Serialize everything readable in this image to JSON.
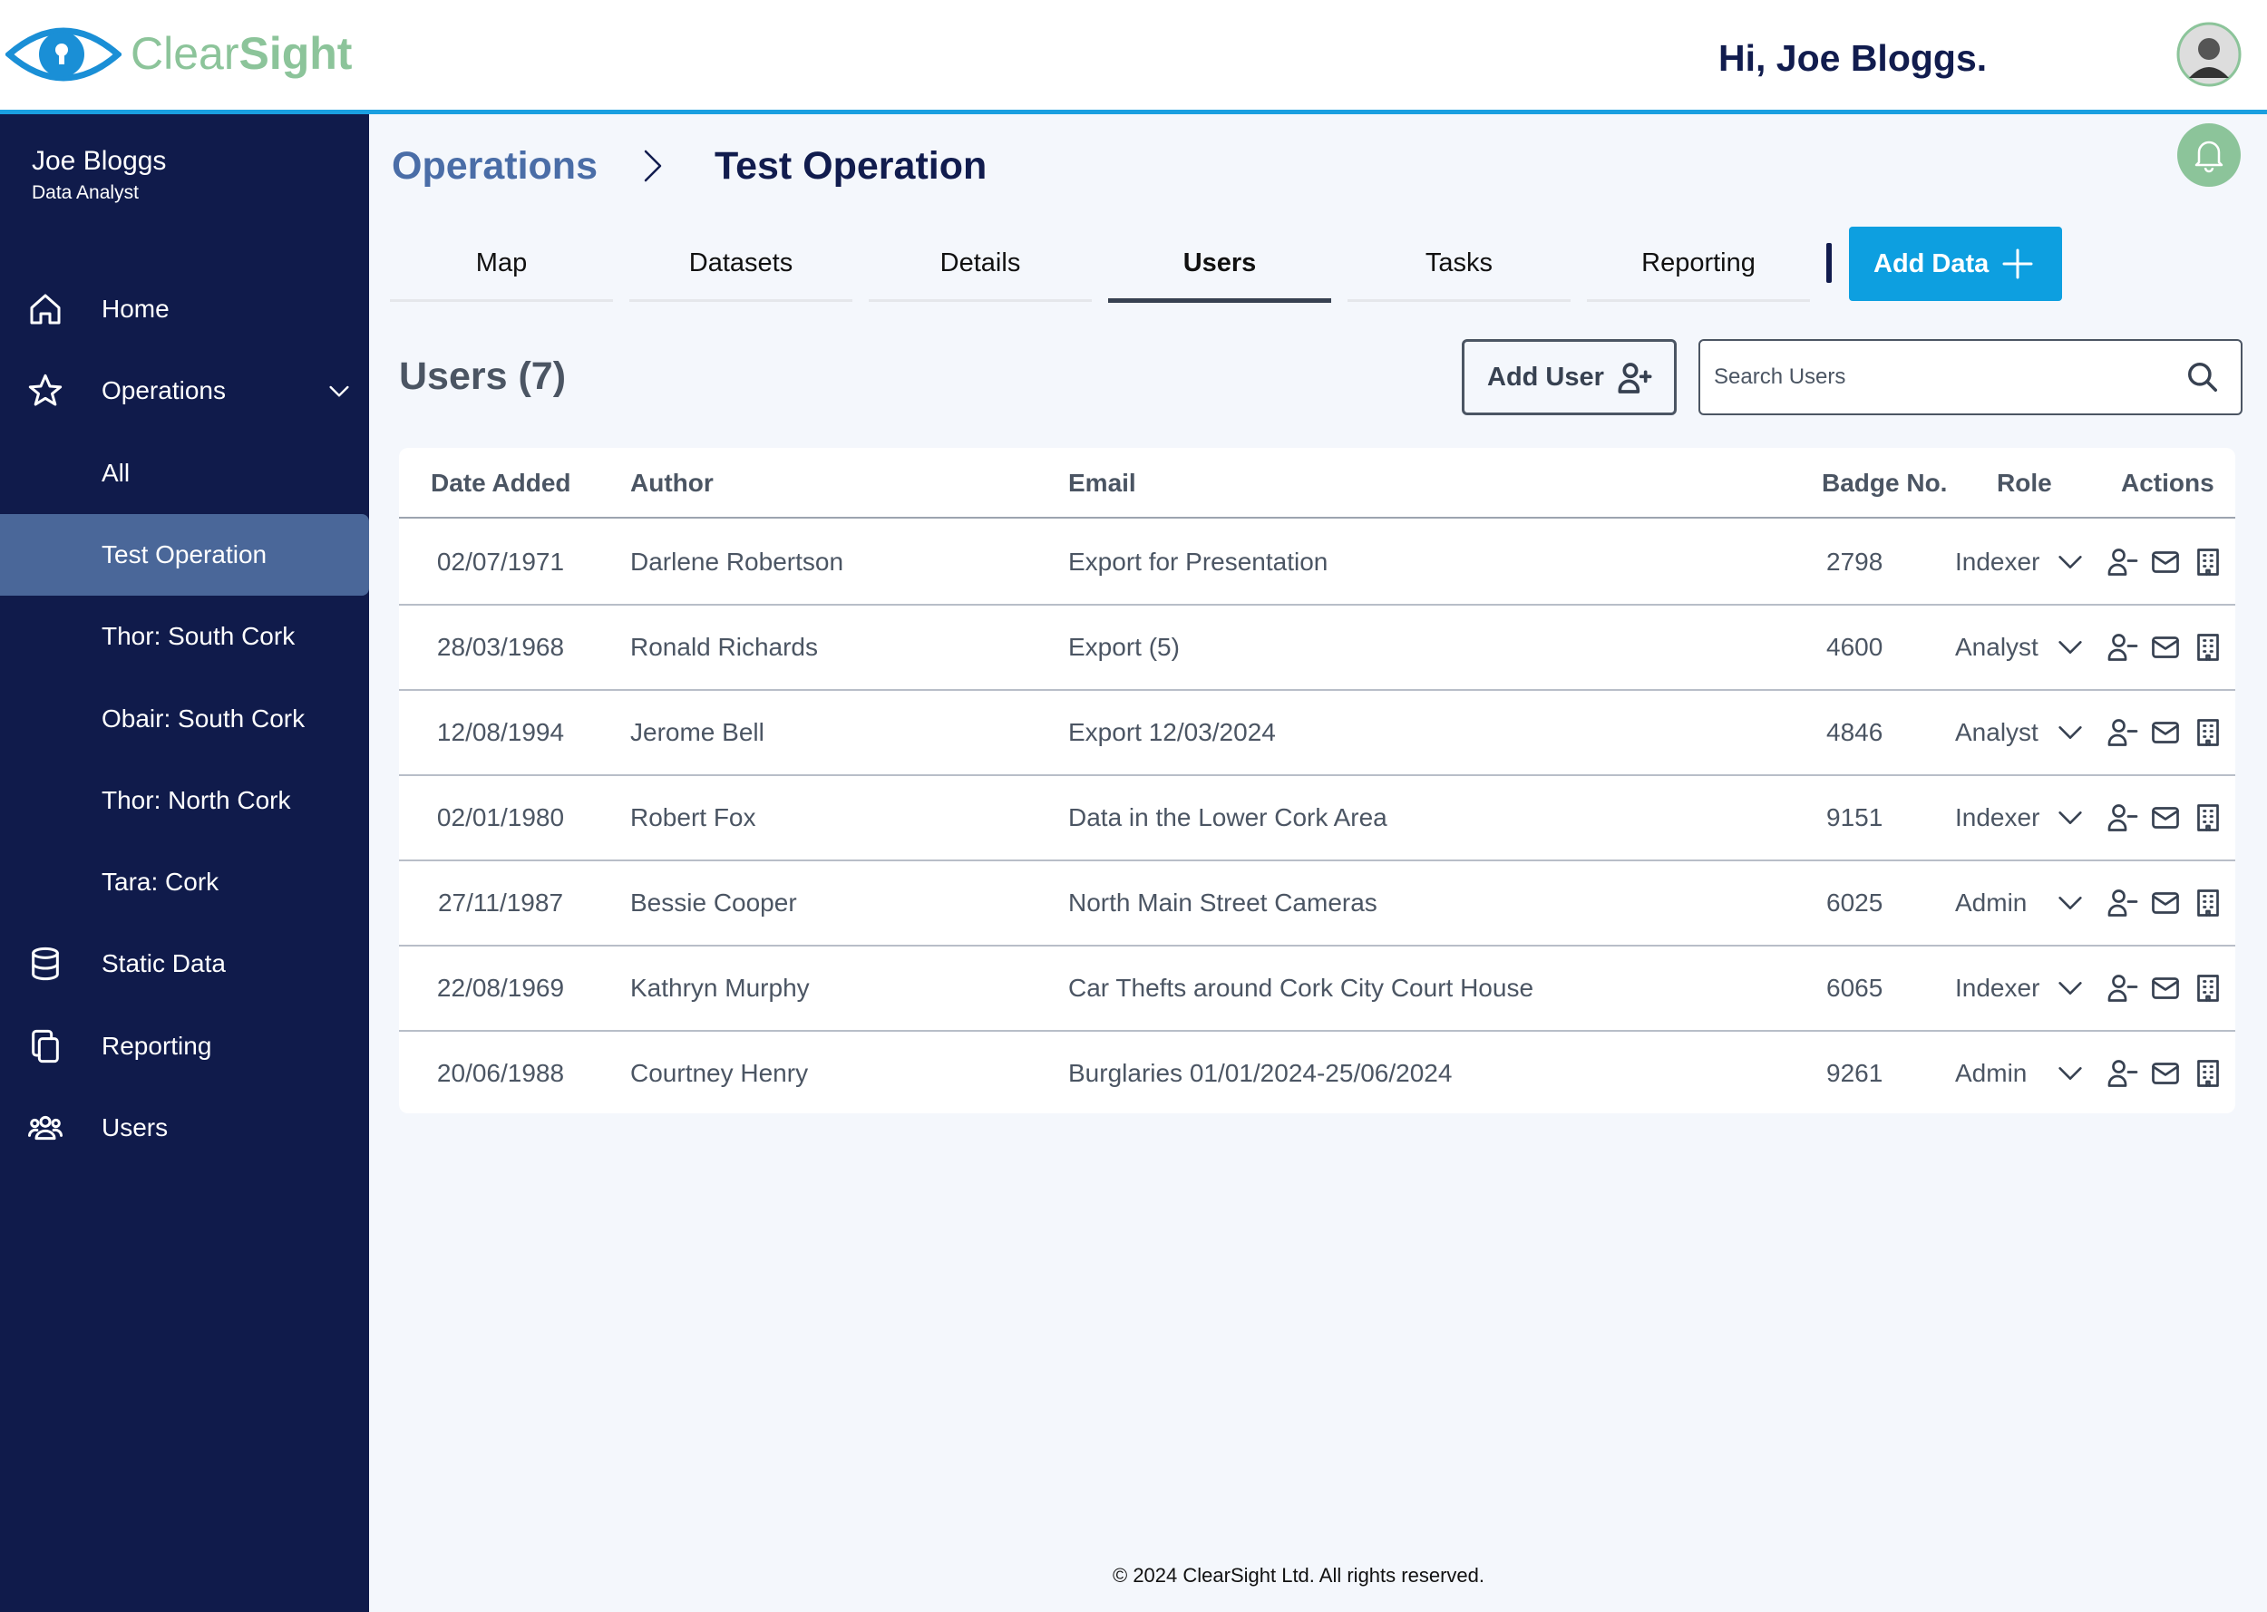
{
  "header": {
    "logo_text_1": "Clear",
    "logo_text_2": "Sight",
    "greeting": "Hi, Joe Bloggs."
  },
  "sidebar": {
    "user_name": "Joe Bloggs",
    "user_role": "Data Analyst",
    "nav": [
      "Home",
      "Operations",
      "All",
      "Test Operation",
      "Thor: South Cork",
      "Obair: South Cork",
      "Thor: North Cork",
      "Tara: Cork",
      "Static Data",
      "Reporting",
      "Users"
    ],
    "active_nav": 3
  },
  "breadcrumb": {
    "parent": "Operations",
    "current": "Test Operation"
  },
  "tabs": [
    "Map",
    "Datasets",
    "Details",
    "Users",
    "Tasks",
    "Reporting"
  ],
  "active_tab": 3,
  "add_data_button": "Add Data",
  "section_title": "Users (7)",
  "add_user_button": "Add User",
  "search_placeholder": "Search Users",
  "table": {
    "columns": [
      "Date Added",
      "Author",
      "Email",
      "Badge No.",
      "Role",
      "Actions"
    ],
    "rows": [
      [
        "02/07/1971",
        "Darlene Robertson",
        "Export for Presentation",
        "2798",
        "Indexer"
      ],
      [
        "28/03/1968",
        "Ronald Richards",
        "Export (5)",
        "4600",
        "Analyst"
      ],
      [
        "12/08/1994",
        "Jerome Bell",
        "Export 12/03/2024",
        "4846",
        "Analyst"
      ],
      [
        "02/01/1980",
        "Robert Fox",
        "Data in the Lower Cork Area",
        "9151",
        "Indexer"
      ],
      [
        "27/11/1987",
        "Bessie Cooper",
        "North Main Street Cameras",
        "6025",
        "Admin"
      ],
      [
        "22/08/1969",
        "Kathryn Murphy",
        "Car Thefts around Cork City Court House",
        "6065",
        "Indexer"
      ],
      [
        "20/06/1988",
        "Courtney Henry",
        "Burglaries 01/01/2024-25/06/2024",
        "9261",
        "Admin"
      ]
    ]
  },
  "footer": "© 2024 ClearSight Ltd. All rights reserved."
}
